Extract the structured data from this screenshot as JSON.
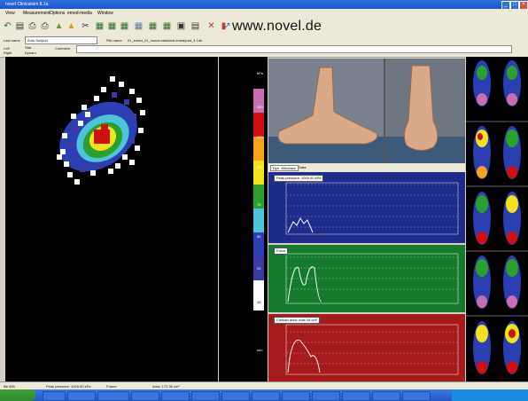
{
  "window": {
    "title": "novel Clinicalsim 8.1a"
  },
  "menu": {
    "items": [
      "View",
      "Measurement",
      "Options",
      "emed-media",
      "Window"
    ]
  },
  "toolbar": {
    "url_text": "www.novel.de"
  },
  "info": {
    "name_label": "Last name",
    "name_value": "Auto Subject",
    "file_label": "File name",
    "file_value": "01_emed_01_nomal standard emed/pad_4.1db",
    "left_label": "Left",
    "right_label": "Right",
    "comment_label": "Comment",
    "opt_static": "Stat",
    "opt_dynamic": "Dynam"
  },
  "scale": {
    "labels": [
      "kPa",
      "200",
      "150",
      "100",
      "75",
      "50",
      "25",
      "10",
      "min"
    ]
  },
  "tabs": {
    "tab1": "Dyn. Windows",
    "tab2": "Data"
  },
  "plots": [
    {
      "title": "Peak pressure: 1000.00 kPa",
      "bg": "#1d2b8a",
      "ymax": 1000
    },
    {
      "title": "Force",
      "bg": "#157a2b",
      "ymax": 1000
    },
    {
      "title": "Contact area: max 18 cm²",
      "bg": "#a51b1b",
      "ymax": 1000
    }
  ],
  "xticks": [
    "0",
    "100",
    "200",
    "300",
    "400",
    "500",
    "600",
    "700",
    "800",
    "900",
    "1000",
    "1100",
    "1200",
    "1300",
    "1400",
    "1500",
    "1600",
    "1700",
    "1800",
    "1900",
    "2000"
  ],
  "status": {
    "s1": "file 800",
    "s2": "Peak pressure: 1000.00 kPa",
    "s3": "Frame",
    "s4": "Area: 172.35 cm²"
  },
  "colors": {
    "accent": "#2f6fe0",
    "pressure_scale": [
      "#c86fb2",
      "#d01010",
      "#f7a21c",
      "#f0e31c",
      "#2ca02c",
      "#4fc3d9",
      "#2b3fb3",
      "#3b3ba3",
      "#ffffff"
    ]
  }
}
